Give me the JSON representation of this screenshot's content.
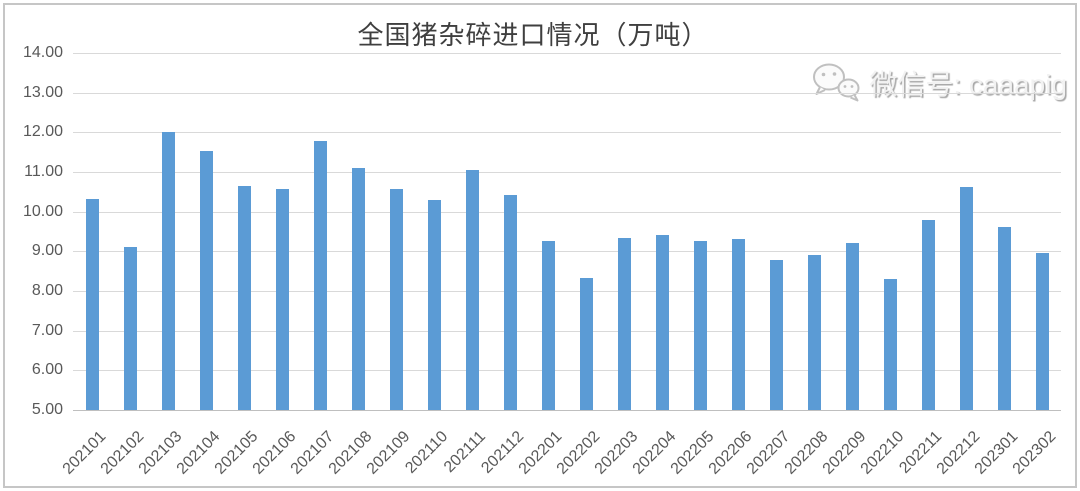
{
  "chart_data": {
    "type": "bar",
    "title": "全国猪杂碎进口情况（万吨）",
    "xlabel": "",
    "ylabel": "",
    "ylim": [
      5,
      14
    ],
    "ytick_step": 1,
    "grid": true,
    "legend": "none",
    "bar_color": "#5B9BD5",
    "categories": [
      "202101",
      "202102",
      "202103",
      "202104",
      "202105",
      "202106",
      "202107",
      "202108",
      "202109",
      "202110",
      "202111",
      "202112",
      "202201",
      "202202",
      "202203",
      "202204",
      "202205",
      "202206",
      "202207",
      "202208",
      "202209",
      "202210",
      "202211",
      "202212",
      "202301",
      "202302"
    ],
    "values": [
      10.33,
      9.1,
      12.0,
      11.53,
      10.65,
      10.58,
      11.78,
      11.1,
      10.57,
      10.3,
      11.06,
      10.42,
      9.25,
      8.33,
      9.34,
      9.4,
      9.25,
      9.3,
      8.78,
      8.91,
      9.21,
      8.3,
      9.79,
      10.63,
      9.62,
      8.96
    ]
  },
  "watermark": {
    "icon": "wechat-icon",
    "text": "微信号: caaapig"
  },
  "colors": {
    "bar": "#5B9BD5",
    "gridline": "#D9D9D9",
    "axis_line": "#BFBFBF",
    "tick_label": "#595959",
    "title": "#3F3F3F",
    "watermark": "#C9C9C9",
    "frame_border": "#C6C6C6"
  }
}
